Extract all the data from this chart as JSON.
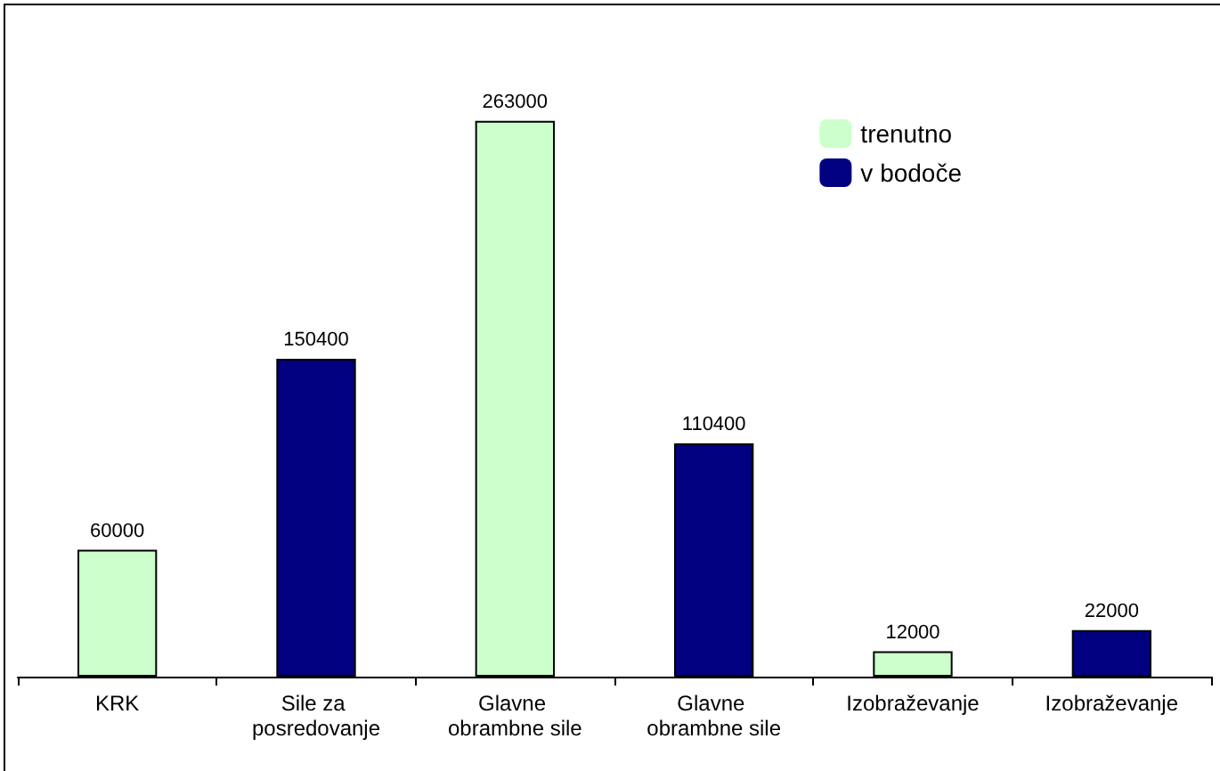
{
  "chart_data": {
    "type": "bar",
    "categories": [
      "KRK",
      "Sile za posredovanje",
      "Glavne obrambne sile",
      "Glavne obrambne sile",
      "Izobraževanje",
      "Izobraževanje"
    ],
    "series": [
      {
        "name": "trenutno",
        "color": "#ccffcc",
        "values": [
          60000,
          null,
          263000,
          null,
          12000,
          null
        ]
      },
      {
        "name": "v bodoče",
        "color": "#000080",
        "values": [
          null,
          150400,
          null,
          110400,
          null,
          22000
        ]
      }
    ],
    "stacked": true,
    "data_labels": true,
    "tick_labels": "x",
    "grid": false,
    "legend": "top right"
  }
}
